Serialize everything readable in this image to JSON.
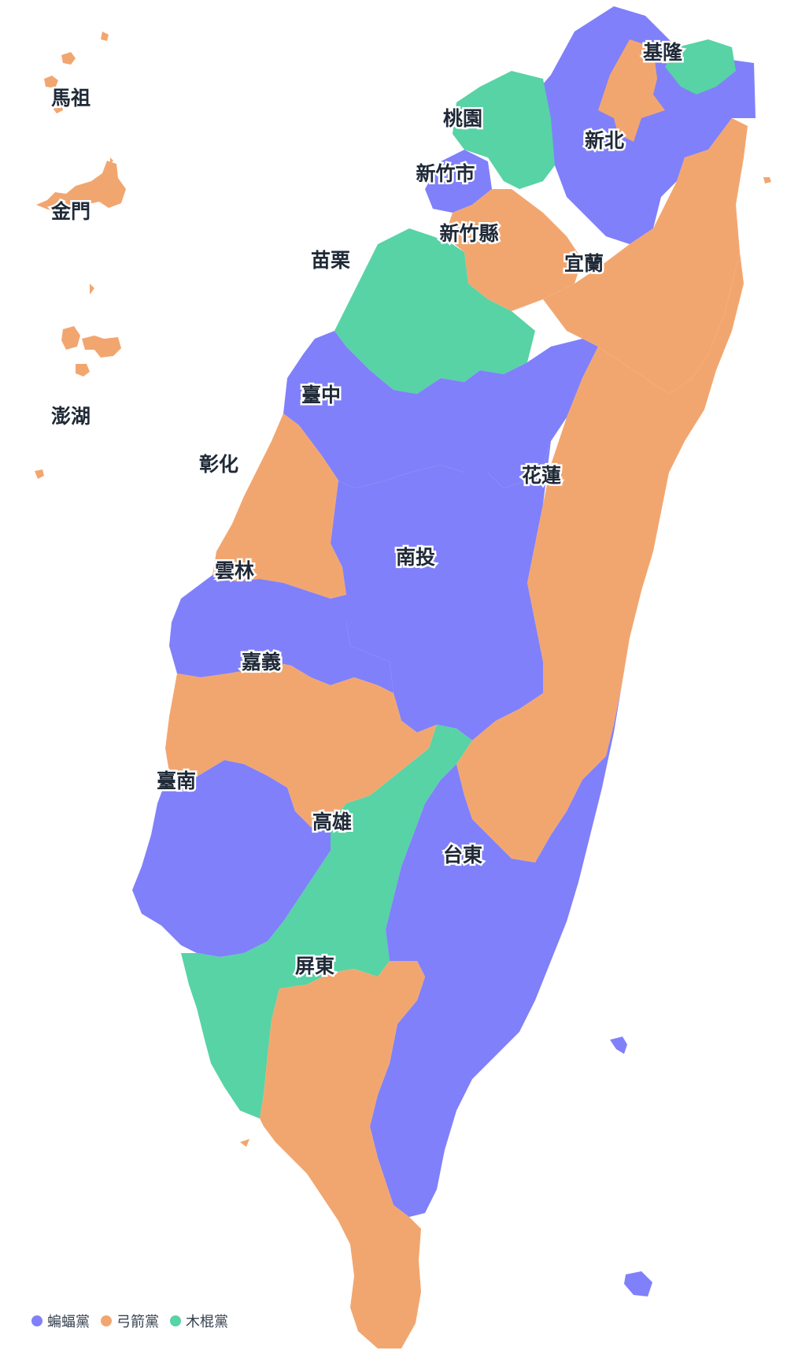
{
  "colors": {
    "bat": "#8080fa",
    "arrow": "#f2a66f",
    "stick": "#57d3a6"
  },
  "legend": [
    {
      "key": "bat",
      "label": "蝙蝠黨"
    },
    {
      "key": "arrow",
      "label": "弓箭黨"
    },
    {
      "key": "stick",
      "label": "木棍黨"
    }
  ],
  "regions": {
    "keelung": {
      "name": "基隆",
      "party": "stick"
    },
    "newtaipei": {
      "name": "新北",
      "party": "bat"
    },
    "taipei": {
      "name": "",
      "party": "arrow"
    },
    "taoyuan": {
      "name": "桃園",
      "party": "stick"
    },
    "hsinchucity": {
      "name": "新竹市",
      "party": "bat"
    },
    "hsinchucounty": {
      "name": "新竹縣",
      "party": "arrow"
    },
    "yilan": {
      "name": "宜蘭",
      "party": "arrow"
    },
    "miaoli": {
      "name": "苗栗",
      "party": "stick"
    },
    "taichung": {
      "name": "臺中",
      "party": "bat"
    },
    "changhua": {
      "name": "彰化",
      "party": "arrow"
    },
    "hualien": {
      "name": "花蓮",
      "party": "arrow"
    },
    "nantou": {
      "name": "南投",
      "party": "bat"
    },
    "yunlin": {
      "name": "雲林",
      "party": "bat"
    },
    "chiayi": {
      "name": "嘉義",
      "party": "arrow"
    },
    "tainan": {
      "name": "臺南",
      "party": "bat"
    },
    "kaohsiung": {
      "name": "高雄",
      "party": "stick"
    },
    "taitung": {
      "name": "台東",
      "party": "bat"
    },
    "pingtung": {
      "name": "屏東",
      "party": "arrow"
    },
    "matsu": {
      "name": "馬祖",
      "party": "arrow"
    },
    "kinmen": {
      "name": "金門",
      "party": "arrow"
    },
    "penghu": {
      "name": "澎湖",
      "party": "arrow"
    }
  }
}
